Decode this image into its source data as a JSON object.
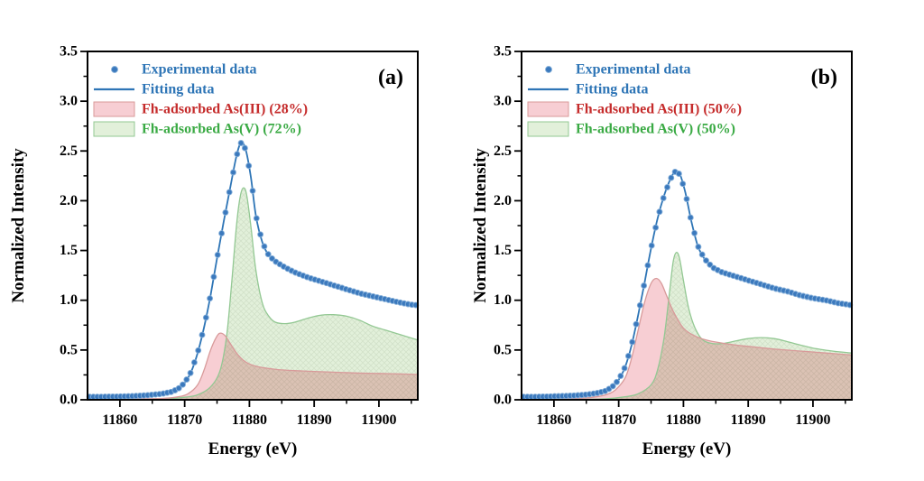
{
  "figure": {
    "background": "#ffffff"
  },
  "chart_data": [
    {
      "type": "line",
      "panel_label": "(a)",
      "xlabel": "Energy (eV)",
      "ylabel": "Normalized Intensity",
      "xlim": [
        11855,
        11906
      ],
      "ylim": [
        0,
        3.5
      ],
      "x_major_ticks": [
        11860,
        11870,
        11880,
        11890,
        11900
      ],
      "x_minor_ticks": [
        11865,
        11875,
        11885,
        11895,
        11905
      ],
      "y_major_step": 0.5,
      "y_minor_step": 0.25,
      "axis_color": "#000000",
      "legend": [
        {
          "label": "Experimental data",
          "swatch": "marker",
          "text_color": "#2e75b6"
        },
        {
          "label": "Fitting data",
          "swatch": "line",
          "text_color": "#2e75b6"
        },
        {
          "label": "Fh-adsorbed As(III) (28%)",
          "swatch": "fill",
          "text_color": "#c52b2b",
          "fill": "#f7ced3",
          "stroke": "#d89a9a"
        },
        {
          "label": "Fh-adsorbed As(V) (72%)",
          "swatch": "fill",
          "text_color": "#3aaa44",
          "fill": "#e2f0da",
          "stroke": "#93c893"
        }
      ],
      "series": [
        {
          "name": "Experimental data",
          "role": "markers",
          "derived_from": "Fitting data",
          "marker_step": 0.6,
          "color": "#3b79bd",
          "edge": "#85afd9"
        },
        {
          "name": "Fitting data",
          "role": "line",
          "color": "#2e75b6",
          "x": [
            11855,
            11857,
            11859,
            11861,
            11863,
            11865,
            11866.5,
            11868,
            11869,
            11870,
            11871,
            11872,
            11873,
            11874,
            11875,
            11876,
            11877,
            11878,
            11878.7,
            11879.4,
            11880.2,
            11881,
            11882,
            11883,
            11884,
            11885.5,
            11887,
            11889,
            11891,
            11893,
            11895,
            11897,
            11899,
            11901,
            11903,
            11905,
            11906
          ],
          "y": [
            0.03,
            0.03,
            0.032,
            0.035,
            0.04,
            0.05,
            0.06,
            0.08,
            0.11,
            0.17,
            0.28,
            0.47,
            0.73,
            1.05,
            1.42,
            1.78,
            2.12,
            2.45,
            2.58,
            2.52,
            2.25,
            1.85,
            1.58,
            1.45,
            1.39,
            1.33,
            1.28,
            1.23,
            1.19,
            1.15,
            1.11,
            1.07,
            1.04,
            1.01,
            0.98,
            0.955,
            0.95
          ]
        },
        {
          "name": "Fh-adsorbed As(III)",
          "fraction": "28%",
          "role": "area",
          "fill": "#f7ced3",
          "stroke": "#d89a9a",
          "x": [
            11855,
            11860,
            11864,
            11867,
            11869,
            11870.5,
            11872,
            11873,
            11874,
            11875,
            11875.6,
            11876.3,
            11877,
            11878,
            11879,
            11880,
            11881.5,
            11883,
            11885,
            11888,
            11892,
            11896,
            11900,
            11903,
            11906
          ],
          "y": [
            0.005,
            0.007,
            0.01,
            0.015,
            0.03,
            0.06,
            0.15,
            0.3,
            0.5,
            0.64,
            0.67,
            0.64,
            0.57,
            0.47,
            0.4,
            0.36,
            0.33,
            0.315,
            0.3,
            0.29,
            0.28,
            0.27,
            0.265,
            0.26,
            0.255
          ]
        },
        {
          "name": "Fh-adsorbed As(V)",
          "fraction": "72%",
          "role": "area",
          "hatch": true,
          "fill": "#e2f0da",
          "stroke": "#93c893",
          "x": [
            11855,
            11862,
            11867,
            11870,
            11872,
            11874,
            11875.5,
            11876.5,
            11877.3,
            11878,
            11878.6,
            11879.1,
            11879.6,
            11880.3,
            11881,
            11882,
            11883,
            11884,
            11885.5,
            11887,
            11889,
            11891,
            11893,
            11895,
            11897,
            11899,
            11901,
            11903.5,
            11906
          ],
          "y": [
            0,
            0.003,
            0.01,
            0.025,
            0.05,
            0.13,
            0.3,
            0.65,
            1.2,
            1.75,
            2.05,
            2.13,
            2.05,
            1.7,
            1.3,
            0.97,
            0.84,
            0.78,
            0.765,
            0.78,
            0.82,
            0.85,
            0.855,
            0.84,
            0.8,
            0.74,
            0.7,
            0.65,
            0.6
          ]
        }
      ]
    },
    {
      "type": "line",
      "panel_label": "(b)",
      "xlabel": "Energy (eV)",
      "ylabel": "Normalized Intensity",
      "xlim": [
        11855,
        11906
      ],
      "ylim": [
        0,
        3.5
      ],
      "x_major_ticks": [
        11860,
        11870,
        11880,
        11890,
        11900
      ],
      "x_minor_ticks": [
        11865,
        11875,
        11885,
        11895,
        11905
      ],
      "y_major_step": 0.5,
      "y_minor_step": 0.25,
      "axis_color": "#000000",
      "legend": [
        {
          "label": "Experimental data",
          "swatch": "marker",
          "text_color": "#2e75b6"
        },
        {
          "label": "Fitting data",
          "swatch": "line",
          "text_color": "#2e75b6"
        },
        {
          "label": "Fh-adsorbed As(III) (50%)",
          "swatch": "fill",
          "text_color": "#c52b2b",
          "fill": "#f7ced3",
          "stroke": "#d89a9a"
        },
        {
          "label": "Fh-adsorbed As(V) (50%)",
          "swatch": "fill",
          "text_color": "#3aaa44",
          "fill": "#e2f0da",
          "stroke": "#93c893"
        }
      ],
      "series": [
        {
          "name": "Experimental data",
          "role": "markers",
          "derived_from": "Fitting data",
          "marker_step": 0.6,
          "color": "#3b79bd",
          "edge": "#85afd9"
        },
        {
          "name": "Fitting data",
          "role": "line",
          "color": "#2e75b6",
          "x": [
            11855,
            11857,
            11859,
            11861,
            11863,
            11865,
            11866.5,
            11868,
            11869,
            11870,
            11871,
            11872,
            11873,
            11874,
            11875,
            11876,
            11877,
            11878,
            11878.8,
            11879.5,
            11880.3,
            11881.2,
            11882.2,
            11883.2,
            11884.5,
            11886,
            11888,
            11890,
            11892,
            11894,
            11896,
            11898,
            11900,
            11902,
            11904,
            11906
          ],
          "y": [
            0.03,
            0.03,
            0.033,
            0.037,
            0.042,
            0.052,
            0.065,
            0.09,
            0.13,
            0.2,
            0.33,
            0.55,
            0.85,
            1.18,
            1.52,
            1.82,
            2.05,
            2.22,
            2.3,
            2.26,
            2.08,
            1.8,
            1.55,
            1.42,
            1.33,
            1.28,
            1.24,
            1.2,
            1.16,
            1.12,
            1.09,
            1.05,
            1.02,
            1.0,
            0.97,
            0.95
          ]
        },
        {
          "name": "Fh-adsorbed As(III)",
          "fraction": "50%",
          "role": "area",
          "fill": "#f7ced3",
          "stroke": "#d89a9a",
          "x": [
            11855,
            11860,
            11864,
            11866,
            11868,
            11869.5,
            11871,
            11872,
            11873,
            11874,
            11875,
            11875.8,
            11876.6,
            11877.5,
            11878.5,
            11880,
            11881.5,
            11883,
            11885,
            11888,
            11891,
            11894,
            11898,
            11902,
            11906
          ],
          "y": [
            0.005,
            0.008,
            0.015,
            0.025,
            0.05,
            0.1,
            0.22,
            0.42,
            0.7,
            0.98,
            1.17,
            1.22,
            1.17,
            1.03,
            0.88,
            0.72,
            0.65,
            0.61,
            0.58,
            0.55,
            0.53,
            0.51,
            0.49,
            0.47,
            0.45
          ]
        },
        {
          "name": "Fh-adsorbed As(V)",
          "fraction": "50%",
          "role": "area",
          "hatch": true,
          "fill": "#e2f0da",
          "stroke": "#93c893",
          "x": [
            11855,
            11863,
            11868,
            11871,
            11873,
            11875,
            11876,
            11877,
            11877.8,
            11878.4,
            11878.9,
            11879.4,
            11880,
            11880.8,
            11881.8,
            11883,
            11884.5,
            11886,
            11888,
            11890,
            11892,
            11894,
            11896,
            11898,
            11900,
            11903,
            11906
          ],
          "y": [
            0,
            0.003,
            0.01,
            0.03,
            0.06,
            0.15,
            0.3,
            0.62,
            1.05,
            1.38,
            1.48,
            1.42,
            1.2,
            0.92,
            0.72,
            0.6,
            0.565,
            0.565,
            0.59,
            0.615,
            0.625,
            0.615,
            0.585,
            0.55,
            0.52,
            0.49,
            0.47
          ]
        }
      ]
    }
  ]
}
